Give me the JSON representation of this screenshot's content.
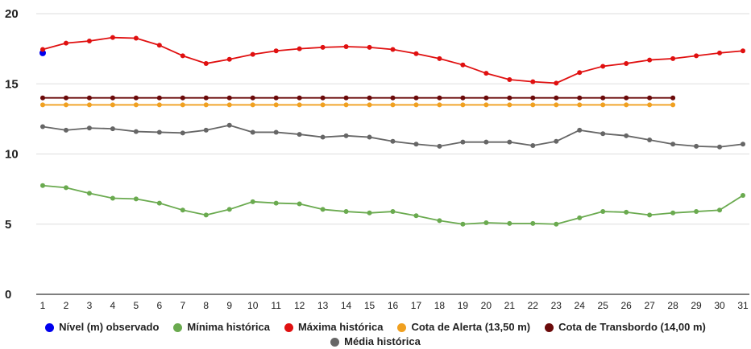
{
  "chart_data": {
    "type": "line",
    "x": [
      1,
      2,
      3,
      4,
      5,
      6,
      7,
      8,
      9,
      10,
      11,
      12,
      13,
      14,
      15,
      16,
      17,
      18,
      19,
      20,
      21,
      22,
      23,
      24,
      25,
      26,
      27,
      28,
      29,
      30,
      31
    ],
    "ylim": [
      0,
      20
    ],
    "yticks": [
      0,
      5,
      10,
      15,
      20
    ],
    "grid": true,
    "legend_position": "bottom",
    "series": [
      {
        "name": "Nível (m) observado",
        "color": "#0000ee",
        "x": [
          1
        ],
        "values": [
          17.2
        ]
      },
      {
        "name": "Mínima histórica",
        "color": "#6aaa4f",
        "x": [
          1,
          2,
          3,
          4,
          5,
          6,
          7,
          8,
          9,
          10,
          11,
          12,
          13,
          14,
          15,
          16,
          17,
          18,
          19,
          20,
          21,
          22,
          23,
          24,
          25,
          26,
          27,
          28,
          29,
          30,
          31
        ],
        "values": [
          7.75,
          7.6,
          7.2,
          6.85,
          6.8,
          6.5,
          6.0,
          5.65,
          6.05,
          6.6,
          6.5,
          6.45,
          6.05,
          5.9,
          5.8,
          5.9,
          5.6,
          5.25,
          5.0,
          5.1,
          5.05,
          5.05,
          5.0,
          5.45,
          5.9,
          5.85,
          5.65,
          5.8,
          5.9,
          6.0,
          7.05
        ]
      },
      {
        "name": "Máxima histórica",
        "color": "#e01010",
        "x": [
          1,
          2,
          3,
          4,
          5,
          6,
          7,
          8,
          9,
          10,
          11,
          12,
          13,
          14,
          15,
          16,
          17,
          18,
          19,
          20,
          21,
          22,
          23,
          24,
          25,
          26,
          27,
          28,
          29,
          30,
          31
        ],
        "values": [
          17.45,
          17.9,
          18.05,
          18.3,
          18.25,
          17.75,
          17.0,
          16.45,
          16.75,
          17.1,
          17.35,
          17.5,
          17.6,
          17.65,
          17.6,
          17.45,
          17.15,
          16.8,
          16.35,
          15.75,
          15.3,
          15.15,
          15.05,
          15.8,
          16.25,
          16.45,
          16.7,
          16.8,
          17.0,
          17.2,
          17.35
        ]
      },
      {
        "name": "Cota de Alerta (13,50 m)",
        "color": "#f0a020",
        "x": [
          1,
          2,
          3,
          4,
          5,
          6,
          7,
          8,
          9,
          10,
          11,
          12,
          13,
          14,
          15,
          16,
          17,
          18,
          19,
          20,
          21,
          22,
          23,
          24,
          25,
          26,
          27,
          28
        ],
        "values": [
          13.5,
          13.5,
          13.5,
          13.5,
          13.5,
          13.5,
          13.5,
          13.5,
          13.5,
          13.5,
          13.5,
          13.5,
          13.5,
          13.5,
          13.5,
          13.5,
          13.5,
          13.5,
          13.5,
          13.5,
          13.5,
          13.5,
          13.5,
          13.5,
          13.5,
          13.5,
          13.5,
          13.5
        ]
      },
      {
        "name": "Cota de Transbordo (14,00 m)",
        "color": "#6b0a0a",
        "x": [
          1,
          2,
          3,
          4,
          5,
          6,
          7,
          8,
          9,
          10,
          11,
          12,
          13,
          14,
          15,
          16,
          17,
          18,
          19,
          20,
          21,
          22,
          23,
          24,
          25,
          26,
          27,
          28
        ],
        "values": [
          14,
          14,
          14,
          14,
          14,
          14,
          14,
          14,
          14,
          14,
          14,
          14,
          14,
          14,
          14,
          14,
          14,
          14,
          14,
          14,
          14,
          14,
          14,
          14,
          14,
          14,
          14,
          14
        ]
      },
      {
        "name": "Média histórica",
        "color": "#666666",
        "x": [
          1,
          2,
          3,
          4,
          5,
          6,
          7,
          8,
          9,
          10,
          11,
          12,
          13,
          14,
          15,
          16,
          17,
          18,
          19,
          20,
          21,
          22,
          23,
          24,
          25,
          26,
          27,
          28,
          29,
          30,
          31
        ],
        "values": [
          11.95,
          11.7,
          11.85,
          11.8,
          11.6,
          11.55,
          11.5,
          11.7,
          12.05,
          11.55,
          11.55,
          11.4,
          11.2,
          11.3,
          11.2,
          10.9,
          10.7,
          10.55,
          10.85,
          10.85,
          10.85,
          10.6,
          10.9,
          11.7,
          11.45,
          11.3,
          11.0,
          10.7,
          10.55,
          10.5,
          10.7
        ]
      }
    ]
  }
}
